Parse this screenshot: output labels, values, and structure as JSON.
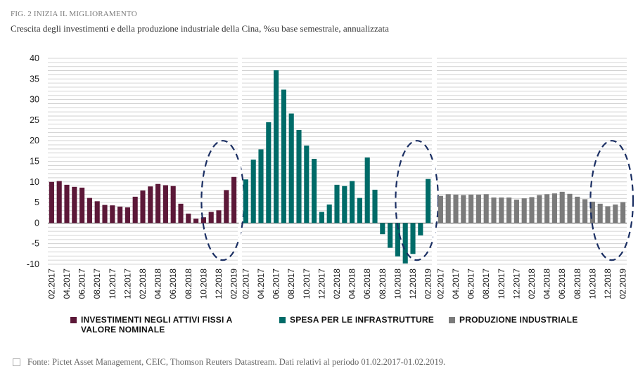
{
  "figure": {
    "label": "FIG. 2 INIZIA IL MIGLIORAMENTO",
    "subtitle": "Crescita degli investimenti e della produzione industriale della Cina, %su base semestrale, annualizzata"
  },
  "colors": {
    "investimenti": "#5c1838",
    "infrastrutture": "#006b68",
    "produzione": "#7b7b7b",
    "ellipse": "#1b2f63",
    "grid": "#c8c8c8"
  },
  "legend": [
    {
      "key": "investimenti",
      "label": "INVESTIMENTI NEGLI ATTIVI FISSI A VALORE NOMINALE"
    },
    {
      "key": "infrastrutture",
      "label": "SPESA PER LE INFRASTRUTTURE"
    },
    {
      "key": "produzione",
      "label": "PRODUZIONE INDUSTRIALE"
    }
  ],
  "source": "Fonte:  Pictet Asset  Management, CEIC, Thomson  Reuters Datastream. Dati relativi al periodo  01.02.2017-01.02.2019.",
  "chart_data": {
    "type": "bar",
    "ylim": [
      -10,
      40
    ],
    "yticks": [
      -10,
      -5,
      0,
      5,
      10,
      15,
      20,
      25,
      30,
      35,
      40
    ],
    "grid": "horizontal, 1-unit spacing",
    "categories": [
      "02.2017",
      "03.2017",
      "04.2017",
      "05.2017",
      "06.2017",
      "07.2017",
      "08.2017",
      "09.2017",
      "10.2017",
      "11.2017",
      "12.2017",
      "01.2018",
      "02.2018",
      "03.2018",
      "04.2018",
      "05.2018",
      "06.2018",
      "07.2018",
      "08.2018",
      "09.2018",
      "10.2018",
      "11.2018",
      "12.2018",
      "01.2019",
      "02.2019"
    ],
    "tick_labels": [
      "02.2017",
      "04.2017",
      "06.2017",
      "08.2017",
      "10.2017",
      "12.2017",
      "02.2018",
      "04.2018",
      "06.2018",
      "08.2018",
      "10.2018",
      "12.2018",
      "02.2019"
    ],
    "series": [
      {
        "name": "INVESTIMENTI NEGLI ATTIVI FISSI A VALORE NOMINALE",
        "color_key": "investimenti",
        "values": [
          10.0,
          10.2,
          9.3,
          8.8,
          8.6,
          6.1,
          5.3,
          4.4,
          4.3,
          4.0,
          3.8,
          6.4,
          7.9,
          8.9,
          9.5,
          9.2,
          9.0,
          4.7,
          2.3,
          1.1,
          1.4,
          2.7,
          3.1,
          8.0,
          11.2
        ]
      },
      {
        "name": "SPESA PER LE INFRASTRUTTURE",
        "color_key": "infrastrutture",
        "values": [
          10.6,
          15.4,
          17.9,
          24.5,
          37.1,
          32.4,
          26.6,
          22.6,
          18.8,
          15.6,
          2.7,
          4.5,
          9.3,
          9.0,
          10.2,
          6.1,
          15.9,
          8.1,
          -2.7,
          -6.0,
          -8.1,
          -9.8,
          -7.5,
          -3.0,
          10.7
        ]
      },
      {
        "name": "PRODUZIONE INDUSTRIALE",
        "color_key": "produzione",
        "values": [
          6.6,
          7.0,
          6.9,
          6.8,
          6.9,
          6.9,
          7.0,
          6.2,
          6.2,
          6.2,
          5.7,
          6.0,
          6.3,
          6.8,
          7.0,
          7.2,
          7.6,
          7.1,
          6.4,
          5.8,
          5.2,
          4.7,
          4.1,
          4.5,
          5.1
        ]
      }
    ]
  }
}
